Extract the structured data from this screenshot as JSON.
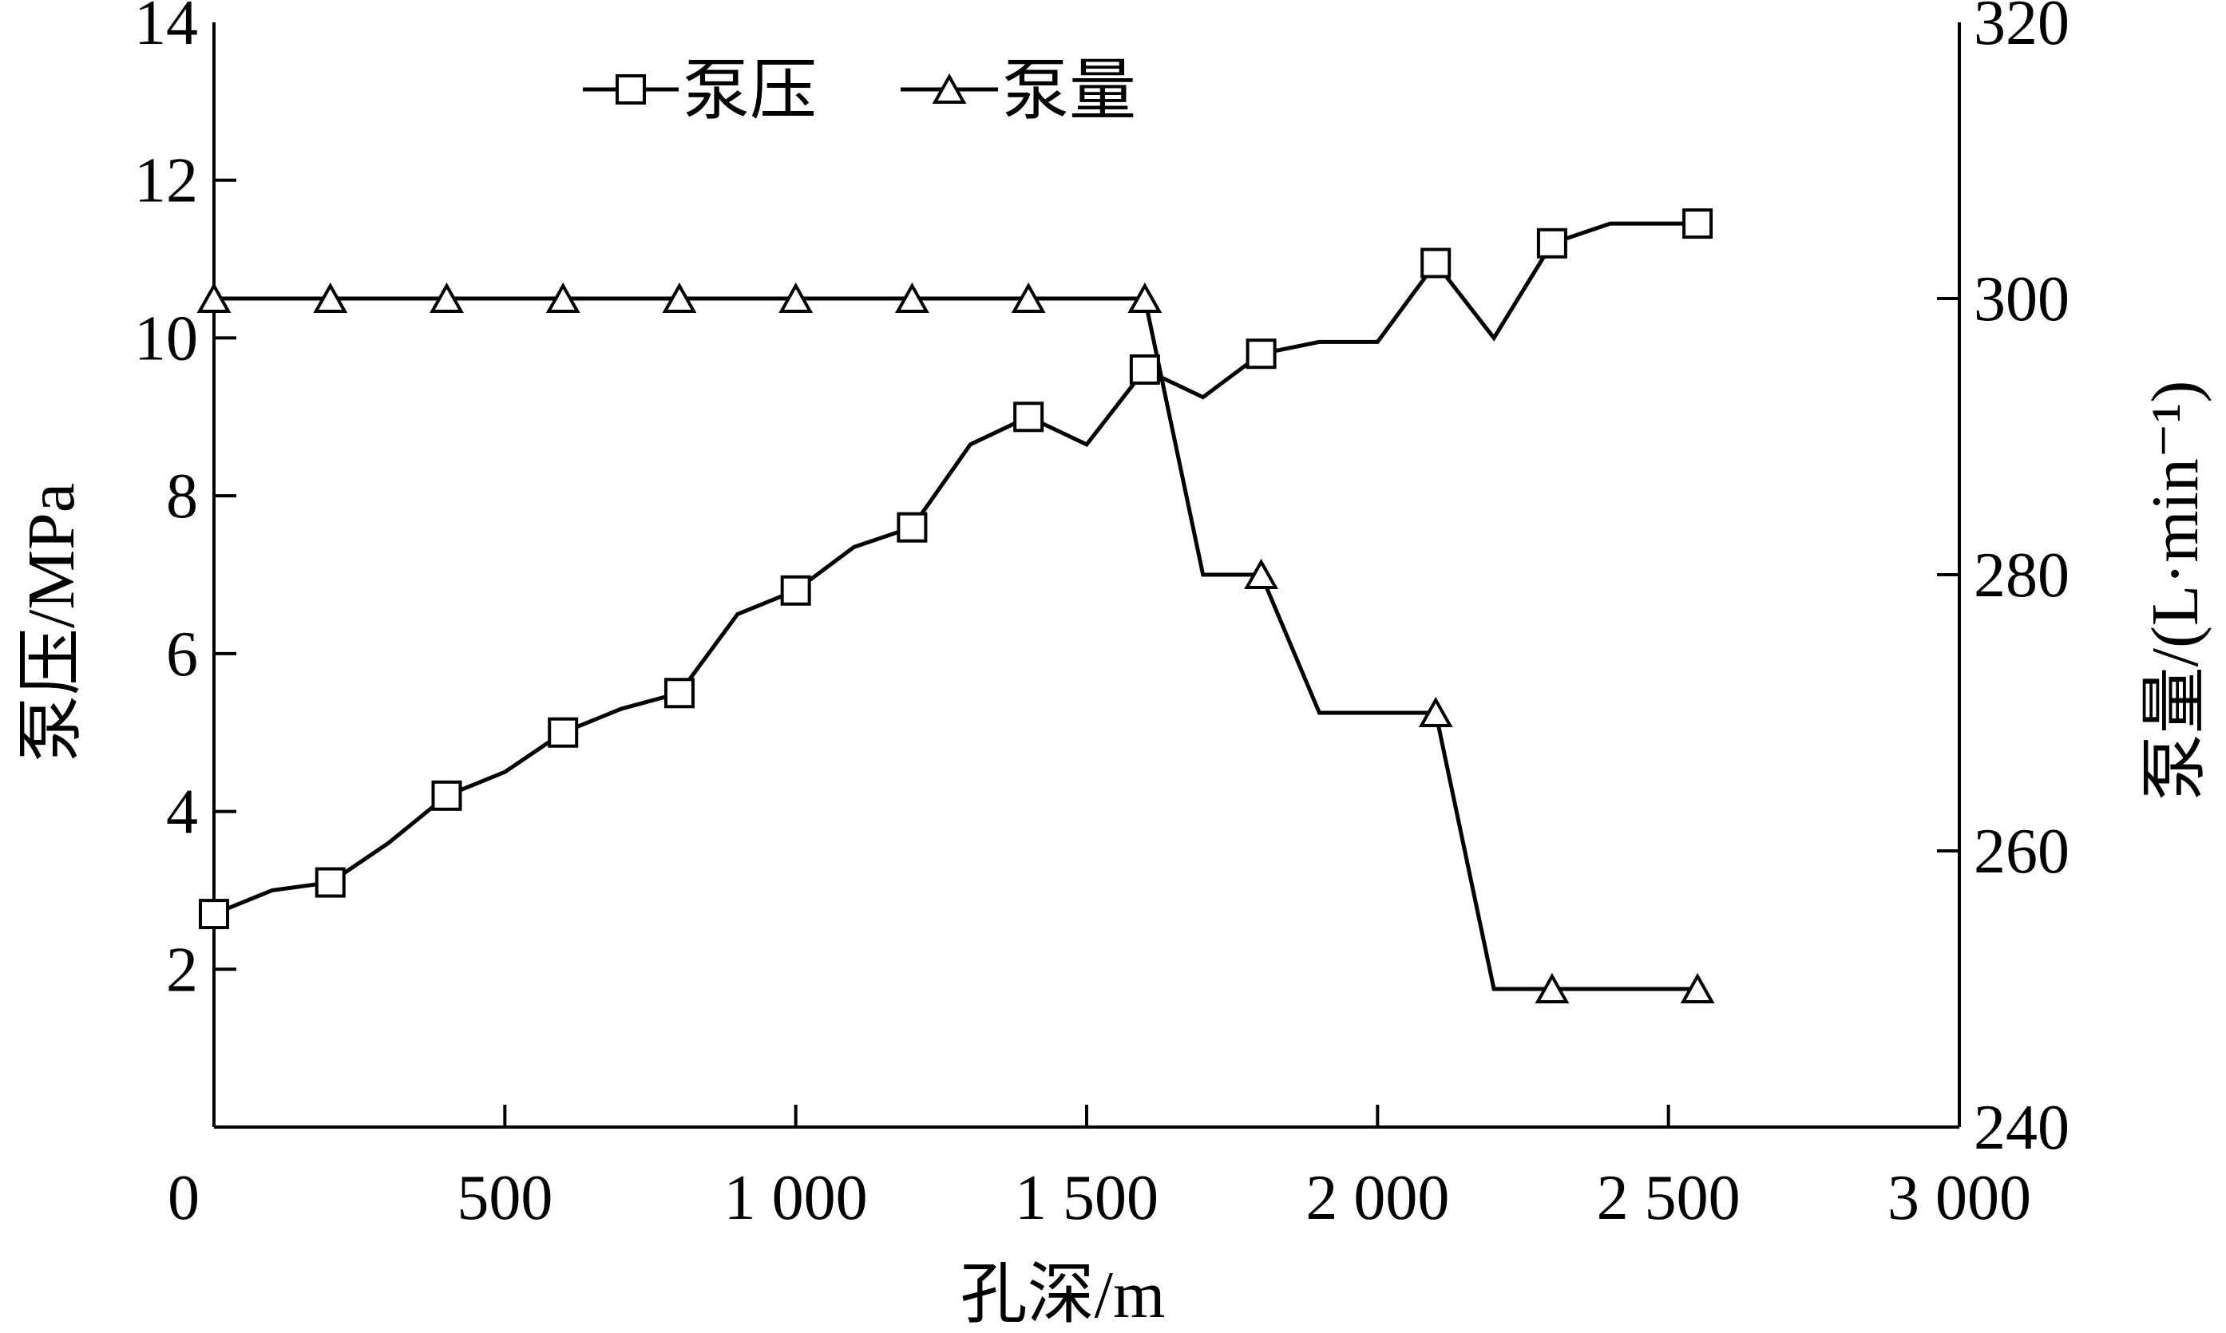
{
  "chart_data": {
    "type": "line",
    "xlabel": "孔深/m",
    "ylabel_left": "泵压/MPa",
    "ylabel_right": "泵量/(L·min⁻¹)",
    "xlim": [
      0,
      3000
    ],
    "ylim_left": [
      0,
      14
    ],
    "ylim_right": [
      240,
      320
    ],
    "x_ticks": [
      {
        "value": 0,
        "label": "0"
      },
      {
        "value": 500,
        "label": "500"
      },
      {
        "value": 1000,
        "label": "1 000"
      },
      {
        "value": 1500,
        "label": "1 500"
      },
      {
        "value": 2000,
        "label": "2 000"
      },
      {
        "value": 2500,
        "label": "2 500"
      },
      {
        "value": 3000,
        "label": "3 000"
      }
    ],
    "y_left_ticks": [
      {
        "value": 2,
        "label": "2"
      },
      {
        "value": 4,
        "label": "4"
      },
      {
        "value": 6,
        "label": "6"
      },
      {
        "value": 8,
        "label": "8"
      },
      {
        "value": 10,
        "label": "10"
      },
      {
        "value": 12,
        "label": "12"
      },
      {
        "value": 14,
        "label": "14"
      }
    ],
    "y_right_ticks": [
      {
        "value": 240,
        "label": "240"
      },
      {
        "value": 260,
        "label": "260"
      },
      {
        "value": 280,
        "label": "280"
      },
      {
        "value": 300,
        "label": "300"
      },
      {
        "value": 320,
        "label": "320"
      }
    ],
    "legend_position": "top-center",
    "series": [
      {
        "name": "泵压",
        "axis": "left",
        "marker": "square",
        "points": [
          {
            "x": 0,
            "y": 2.7,
            "marker": true
          },
          {
            "x": 100,
            "y": 3.0,
            "marker": false
          },
          {
            "x": 200,
            "y": 3.1,
            "marker": true
          },
          {
            "x": 300,
            "y": 3.6,
            "marker": false
          },
          {
            "x": 400,
            "y": 4.2,
            "marker": true
          },
          {
            "x": 500,
            "y": 4.5,
            "marker": false
          },
          {
            "x": 600,
            "y": 5.0,
            "marker": true
          },
          {
            "x": 700,
            "y": 5.3,
            "marker": false
          },
          {
            "x": 800,
            "y": 5.5,
            "marker": true
          },
          {
            "x": 900,
            "y": 6.5,
            "marker": false
          },
          {
            "x": 1000,
            "y": 6.8,
            "marker": true
          },
          {
            "x": 1100,
            "y": 7.35,
            "marker": false
          },
          {
            "x": 1200,
            "y": 7.6,
            "marker": true
          },
          {
            "x": 1300,
            "y": 8.65,
            "marker": false
          },
          {
            "x": 1400,
            "y": 9.0,
            "marker": true
          },
          {
            "x": 1500,
            "y": 8.65,
            "marker": false
          },
          {
            "x": 1600,
            "y": 9.6,
            "marker": true
          },
          {
            "x": 1700,
            "y": 9.25,
            "marker": false
          },
          {
            "x": 1800,
            "y": 9.8,
            "marker": true
          },
          {
            "x": 1900,
            "y": 9.95,
            "marker": false
          },
          {
            "x": 2000,
            "y": 9.95,
            "marker": false
          },
          {
            "x": 2100,
            "y": 10.95,
            "marker": true
          },
          {
            "x": 2200,
            "y": 10.0,
            "marker": false
          },
          {
            "x": 2300,
            "y": 11.2,
            "marker": true
          },
          {
            "x": 2400,
            "y": 11.45,
            "marker": false
          },
          {
            "x": 2550,
            "y": 11.45,
            "marker": true
          }
        ]
      },
      {
        "name": "泵量",
        "axis": "right",
        "marker": "triangle",
        "points": [
          {
            "x": 0,
            "y": 300,
            "marker": true
          },
          {
            "x": 200,
            "y": 300,
            "marker": true
          },
          {
            "x": 400,
            "y": 300,
            "marker": true
          },
          {
            "x": 600,
            "y": 300,
            "marker": true
          },
          {
            "x": 800,
            "y": 300,
            "marker": true
          },
          {
            "x": 1000,
            "y": 300,
            "marker": true
          },
          {
            "x": 1200,
            "y": 300,
            "marker": true
          },
          {
            "x": 1400,
            "y": 300,
            "marker": true
          },
          {
            "x": 1600,
            "y": 300,
            "marker": true
          },
          {
            "x": 1700,
            "y": 280,
            "marker": false
          },
          {
            "x": 1800,
            "y": 280,
            "marker": true
          },
          {
            "x": 1900,
            "y": 270,
            "marker": false
          },
          {
            "x": 2100,
            "y": 270,
            "marker": true
          },
          {
            "x": 2200,
            "y": 250,
            "marker": false
          },
          {
            "x": 2300,
            "y": 250,
            "marker": true
          },
          {
            "x": 2550,
            "y": 250,
            "marker": true
          }
        ]
      }
    ]
  }
}
